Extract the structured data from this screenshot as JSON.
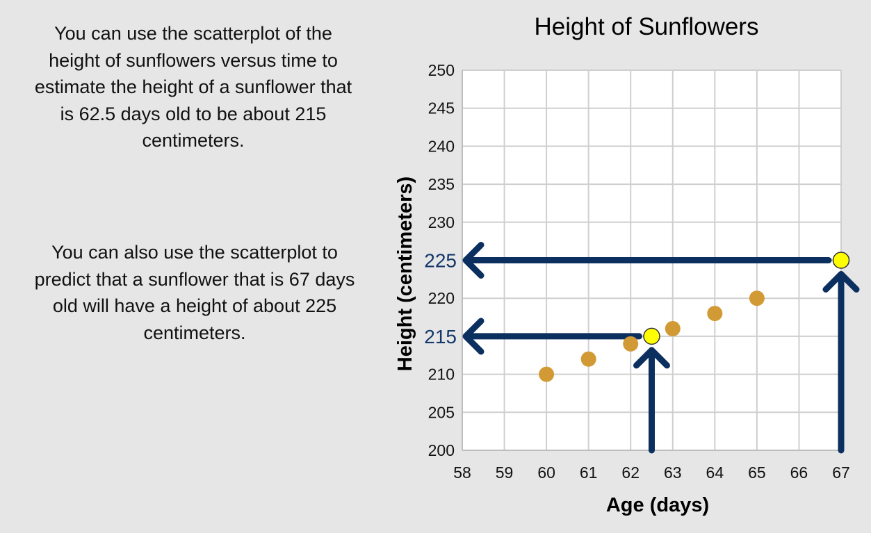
{
  "paragraphs": [
    "You can use the scatterplot of the height of sunflowers versus time to estimate the height of a sunflower that is 62.5 days old to be about 215 centimeters.",
    "You can also use the scatterplot to predict that a sunflower that is 67 days old will have a height of about 225 centimeters."
  ],
  "chart_data": {
    "type": "scatter",
    "title": "Height of Sunflowers",
    "xlabel": "Age (days)",
    "ylabel": "Height (centimeters)",
    "xlim": [
      58,
      67
    ],
    "ylim": [
      200,
      250
    ],
    "xticks": [
      58,
      59,
      60,
      61,
      62,
      63,
      64,
      65,
      66,
      67
    ],
    "yticks": [
      200,
      205,
      210,
      215,
      220,
      225,
      230,
      235,
      240,
      245,
      250
    ],
    "grid": true,
    "series": [
      {
        "color": "#d19a34",
        "points": [
          {
            "x": 60,
            "y": 210
          },
          {
            "x": 61,
            "y": 212
          },
          {
            "x": 62,
            "y": 214
          },
          {
            "x": 63,
            "y": 216
          },
          {
            "x": 64,
            "y": 218
          },
          {
            "x": 65,
            "y": 220
          }
        ]
      }
    ],
    "highlighted_points": [
      {
        "x": 62.5,
        "y": 215,
        "color": "#ffff00"
      },
      {
        "x": 67,
        "y": 225,
        "color": "#ffff00"
      }
    ],
    "highlighted_tick_color": "#13386b",
    "arrow_color": "#0b2f5f"
  }
}
